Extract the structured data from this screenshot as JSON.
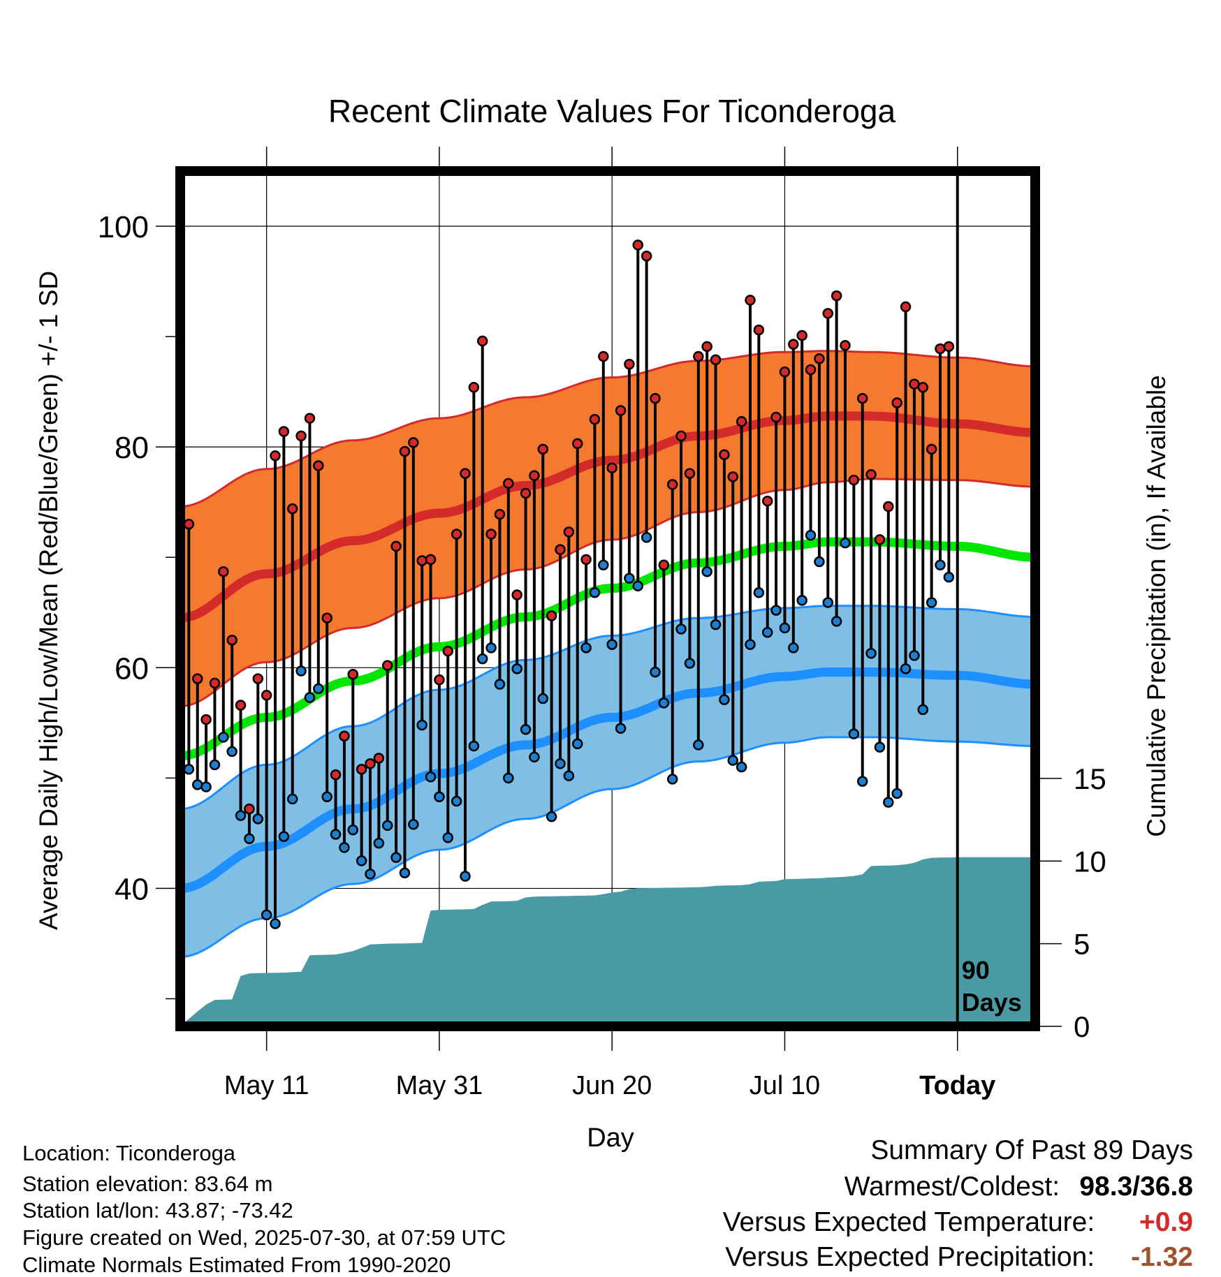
{
  "chart_data": {
    "type": "line",
    "title": "Recent Climate Values For Ticonderoga",
    "xlabel": "Day",
    "ylabel": "Average Daily High/Low/Mean (Red/Blue/Green) +/- 1 SD",
    "y2label": "Cumulative Precipitation (in), If Available",
    "ylim": [
      27.5,
      105
    ],
    "y_ticks": [
      "40",
      "60",
      "80",
      "100"
    ],
    "y2lim": [
      0,
      51.75
    ],
    "y2_ticks": [
      "0",
      "5",
      "10",
      "15"
    ],
    "x_range": [
      0,
      99
    ],
    "x_ticks": [
      {
        "day": 10,
        "label": "May 11"
      },
      {
        "day": 30,
        "label": "May 31"
      },
      {
        "day": 50,
        "label": "Jun 20"
      },
      {
        "day": 70,
        "label": "Jul 10"
      },
      {
        "day": 90,
        "label": "Today"
      }
    ],
    "today_marker": {
      "day": 90,
      "label_line1": "90",
      "label_line2": "Days"
    },
    "normals": {
      "high": {
        "day": [
          0,
          10,
          20,
          30,
          40,
          50,
          60,
          70,
          75,
          80,
          90,
          99
        ],
        "values": [
          64.5,
          68.5,
          71.5,
          74.0,
          76.5,
          78.8,
          81.0,
          82.4,
          82.8,
          82.8,
          82.1,
          81.3
        ],
        "sd_upper": [
          74.6,
          78.0,
          80.6,
          82.6,
          84.5,
          86.3,
          87.8,
          88.6,
          88.7,
          88.6,
          88.1,
          87.3
        ],
        "sd_lower": [
          56.5,
          60.5,
          63.6,
          66.3,
          68.9,
          71.6,
          74.1,
          76.1,
          76.8,
          77.1,
          77.0,
          76.4
        ]
      },
      "mean": {
        "day": [
          0,
          10,
          20,
          30,
          40,
          50,
          60,
          70,
          75,
          80,
          90,
          99
        ],
        "values": [
          52.0,
          55.5,
          58.8,
          61.9,
          64.6,
          67.2,
          69.5,
          71.0,
          71.4,
          71.4,
          71.0,
          70.0
        ]
      },
      "low": {
        "day": [
          0,
          10,
          20,
          30,
          40,
          50,
          60,
          70,
          75,
          80,
          90,
          99
        ],
        "values": [
          40.0,
          43.8,
          47.2,
          50.4,
          53.0,
          55.5,
          57.7,
          59.2,
          59.6,
          59.6,
          59.3,
          58.5
        ],
        "sd_upper": [
          47.2,
          51.2,
          54.7,
          58.0,
          60.7,
          62.9,
          64.5,
          65.4,
          65.6,
          65.6,
          65.3,
          64.6
        ],
        "sd_lower": [
          33.8,
          37.3,
          40.4,
          43.5,
          46.3,
          49.0,
          51.5,
          53.2,
          53.7,
          53.7,
          53.3,
          52.9
        ]
      }
    },
    "observed": {
      "high": [
        73.0,
        59.0,
        55.3,
        58.6,
        68.7,
        62.5,
        56.6,
        47.2,
        59.0,
        57.5,
        79.2,
        81.4,
        74.4,
        81.0,
        82.6,
        78.3,
        64.5,
        50.3,
        53.8,
        59.4,
        50.8,
        51.3,
        51.8,
        60.2,
        71.0,
        79.6,
        80.4,
        69.7,
        69.8,
        58.9,
        61.5,
        72.1,
        77.6,
        85.4,
        89.6,
        72.1,
        73.9,
        76.7,
        66.6,
        75.8,
        77.4,
        79.8,
        64.7,
        70.7,
        72.3,
        80.3,
        69.8,
        82.5,
        88.2,
        78.1,
        83.3,
        87.5,
        98.3,
        97.3,
        84.4,
        69.3,
        76.6,
        81.0,
        77.6,
        88.2,
        89.1,
        87.9,
        79.3,
        77.3,
        82.3,
        93.3,
        90.6,
        75.1,
        82.7,
        86.8,
        89.3,
        90.1,
        87.0,
        88.0,
        92.1,
        93.7,
        89.2,
        77.0,
        84.4,
        77.5,
        71.6,
        74.6,
        84.0,
        92.7,
        85.7,
        85.4,
        79.8,
        88.9,
        89.1
      ],
      "low": [
        50.8,
        49.4,
        49.2,
        51.2,
        53.7,
        52.4,
        46.6,
        44.5,
        46.3,
        37.6,
        36.8,
        44.7,
        48.1,
        59.7,
        57.3,
        58.1,
        48.3,
        44.9,
        43.7,
        45.3,
        42.5,
        41.3,
        44.1,
        45.7,
        42.8,
        41.4,
        45.8,
        54.8,
        50.1,
        48.3,
        44.6,
        47.9,
        41.1,
        52.9,
        60.8,
        61.8,
        58.5,
        50.0,
        59.9,
        54.4,
        51.9,
        57.2,
        46.5,
        51.3,
        50.2,
        53.1,
        61.8,
        66.8,
        69.3,
        62.1,
        54.5,
        68.1,
        67.4,
        71.8,
        59.6,
        56.8,
        49.9,
        63.5,
        60.4,
        53.0,
        68.7,
        63.9,
        57.1,
        51.6,
        51.0,
        62.1,
        66.8,
        63.2,
        65.2,
        63.6,
        61.8,
        66.1,
        72.0,
        69.6,
        65.9,
        64.2,
        71.3,
        54.0,
        49.7,
        61.3,
        52.8,
        47.8,
        48.6,
        59.9,
        61.1,
        56.2,
        65.9,
        69.3,
        68.2
      ]
    },
    "cumulative_precip": {
      "day": [
        0,
        1,
        2,
        3,
        4,
        5,
        6,
        7,
        8,
        9,
        10,
        11,
        12,
        13,
        14,
        15,
        16,
        17,
        18,
        19,
        20,
        21,
        22,
        23,
        24,
        25,
        26,
        27,
        28,
        29,
        30,
        31,
        32,
        33,
        34,
        35,
        36,
        37,
        38,
        39,
        40,
        41,
        42,
        43,
        44,
        45,
        46,
        47,
        48,
        49,
        50,
        51,
        52,
        53,
        54,
        55,
        56,
        57,
        58,
        59,
        60,
        61,
        62,
        63,
        64,
        65,
        66,
        67,
        68,
        69,
        70,
        71,
        72,
        73,
        74,
        75,
        76,
        77,
        78,
        79,
        80,
        81,
        82,
        83,
        84,
        85,
        86,
        87,
        88,
        89,
        90,
        91,
        92,
        93,
        94,
        95,
        96,
        97,
        98,
        99
      ],
      "values": [
        0,
        0.45,
        0.9,
        1.32,
        1.6,
        1.62,
        1.63,
        3.05,
        3.2,
        3.22,
        3.23,
        3.24,
        3.25,
        3.28,
        3.3,
        4.3,
        4.32,
        4.33,
        4.35,
        4.45,
        4.55,
        4.75,
        4.95,
        4.98,
        5.0,
        5.01,
        5.02,
        5.03,
        5.05,
        7.0,
        7.05,
        7.06,
        7.07,
        7.08,
        7.1,
        7.35,
        7.55,
        7.56,
        7.57,
        7.6,
        7.8,
        7.85,
        7.86,
        7.87,
        7.88,
        7.89,
        7.9,
        7.91,
        7.92,
        8.0,
        8.1,
        8.15,
        8.3,
        8.35,
        8.36,
        8.37,
        8.38,
        8.39,
        8.4,
        8.41,
        8.42,
        8.45,
        8.5,
        8.52,
        8.53,
        8.54,
        8.6,
        8.75,
        8.78,
        8.8,
        8.9,
        8.92,
        8.93,
        8.95,
        8.96,
        9.0,
        9.02,
        9.05,
        9.1,
        9.2,
        9.7,
        9.72,
        9.73,
        9.75,
        9.8,
        9.9,
        10.1,
        10.2,
        10.21,
        10.22,
        10.23,
        10.23,
        10.23,
        10.23,
        10.23,
        10.23,
        10.23,
        10.23,
        10.23,
        10.23
      ]
    },
    "colors": {
      "high_line": "#d42a2a",
      "high_band": "#f57a30",
      "mean_line": "#00e600",
      "low_line": "#1e8fff",
      "low_band": "#7fbfe6",
      "high_marker": "#d42a2a",
      "low_marker": "#1e7fd0",
      "precip_fill": "#4a9aa5",
      "frame": "#000000"
    },
    "grid": true
  },
  "info": {
    "location": "Location: Ticonderoga",
    "elevation": "Station elevation: 83.64 m",
    "latlon": "Station lat/lon: 43.87; -73.42",
    "created": "Figure created on Wed, 2025-07-30, at 07:59 UTC",
    "normals": "Climate Normals Estimated From 1990-2020"
  },
  "summary": {
    "title": "Summary Of Past 89 Days",
    "warm_cold_label": "Warmest/Coldest:",
    "warm_cold_value": "98.3/36.8",
    "temp_label": "Versus Expected Temperature:",
    "temp_value": "+0.9",
    "temp_color": "#d42a2a",
    "precip_label": "Versus Expected Precipitation:",
    "precip_value": "-1.32",
    "precip_color": "#a0522d"
  }
}
